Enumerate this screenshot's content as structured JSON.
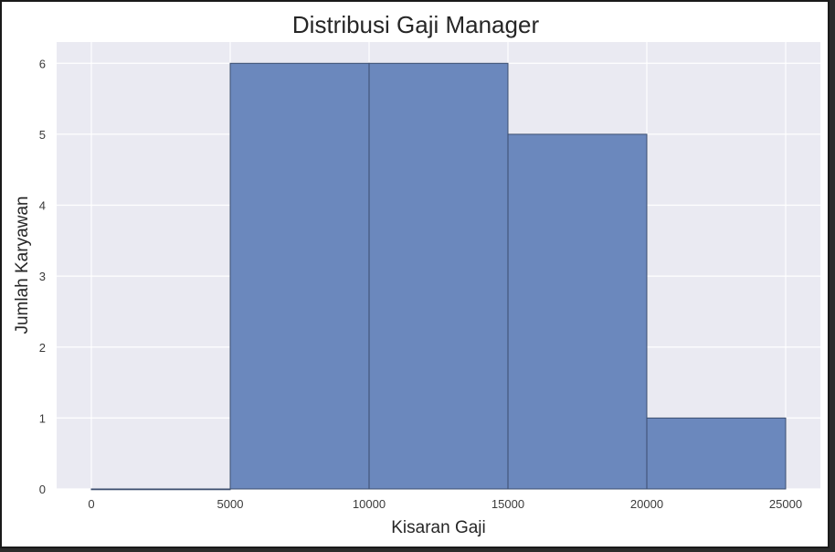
{
  "chart_data": {
    "type": "bar",
    "title": "Distribusi Gaji Manager",
    "xlabel": "Kisaran Gaji",
    "ylabel": "Jumlah Karyawan",
    "bins": [
      {
        "start": 0,
        "end": 5000,
        "count": 0
      },
      {
        "start": 5000,
        "end": 10000,
        "count": 6
      },
      {
        "start": 10000,
        "end": 15000,
        "count": 6
      },
      {
        "start": 15000,
        "end": 20000,
        "count": 5
      },
      {
        "start": 20000,
        "end": 25000,
        "count": 1
      }
    ],
    "xticks": [
      "0",
      "5000",
      "10000",
      "15000",
      "20000",
      "25000"
    ],
    "yticks": [
      "0",
      "1",
      "2",
      "3",
      "4",
      "5",
      "6"
    ],
    "xlim": [
      -1250,
      26250
    ],
    "ylim": [
      0,
      6.3
    ],
    "grid": true,
    "colors": {
      "bar_fill": "#6b88bd",
      "bar_edge": "#3b4d6e",
      "plot_bg": "#eaeaf2",
      "grid": "#ffffff"
    }
  }
}
